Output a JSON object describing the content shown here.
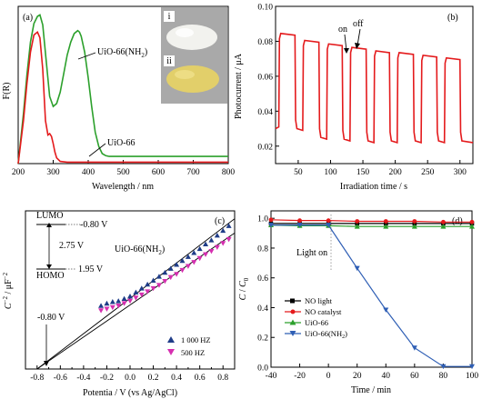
{
  "chart_data": [
    {
      "panel": "(a)",
      "type": "line",
      "xlabel": "Wavelength / nm",
      "ylabel": "F(R)",
      "xlim": [
        200,
        800
      ],
      "xticks": [
        200,
        300,
        400,
        500,
        600,
        700,
        800
      ],
      "ylim": [
        0,
        1.1
      ],
      "series": [
        {
          "name": "UiO-66(NH2)",
          "color": "#2ca02c",
          "x": [
            200,
            215,
            225,
            235,
            245,
            255,
            262,
            270,
            280,
            290,
            300,
            310,
            320,
            330,
            340,
            350,
            360,
            370,
            375,
            380,
            390,
            400,
            410,
            420,
            430,
            440,
            450,
            460,
            480,
            500,
            600,
            700,
            800
          ],
          "y": [
            0.0,
            0.35,
            0.62,
            0.85,
            0.98,
            1.03,
            1.04,
            0.97,
            0.72,
            0.47,
            0.4,
            0.42,
            0.5,
            0.63,
            0.76,
            0.85,
            0.91,
            0.93,
            0.92,
            0.89,
            0.78,
            0.6,
            0.4,
            0.22,
            0.12,
            0.07,
            0.055,
            0.05,
            0.05,
            0.05,
            0.05,
            0.05,
            0.05
          ]
        },
        {
          "name": "UiO-66",
          "color": "#e41a1c",
          "x": [
            200,
            215,
            225,
            235,
            245,
            255,
            262,
            270,
            278,
            285,
            290,
            295,
            300,
            305,
            310,
            320,
            340,
            380,
            400,
            450,
            500,
            600,
            700,
            800
          ],
          "y": [
            0.0,
            0.3,
            0.56,
            0.78,
            0.9,
            0.92,
            0.88,
            0.66,
            0.3,
            0.2,
            0.21,
            0.19,
            0.14,
            0.08,
            0.04,
            0.015,
            0.01,
            0.01,
            0.01,
            0.01,
            0.01,
            0.01,
            0.01,
            0.01
          ]
        }
      ],
      "annotations": [
        "UiO-66(NH2)",
        "UiO-66"
      ],
      "inset_labels": [
        "i",
        "ii"
      ]
    },
    {
      "panel": "(b)",
      "type": "line",
      "xlabel": "Irradiation time / s",
      "ylabel": "Photocurrent / μA",
      "xlim": [
        15,
        320
      ],
      "xticks": [
        50,
        100,
        150,
        200,
        250,
        300
      ],
      "ylim": [
        0.01,
        0.1
      ],
      "yticks": [
        0.02,
        0.04,
        0.06,
        0.08,
        0.1
      ],
      "ytick_labels": [
        "0.02",
        "0.04",
        "0.06",
        "0.08",
        "0.10"
      ],
      "series": [
        {
          "name": "photocurrent",
          "color": "#e41a1c",
          "on_off_cycles": [
            {
              "on": 20,
              "off": 45,
              "on_level": 0.0845,
              "dark_level": 0.029
            },
            {
              "on": 57,
              "off": 82,
              "on_level": 0.0805,
              "dark_level": 0.024
            },
            {
              "on": 94,
              "off": 118,
              "on_level": 0.0785,
              "dark_level": 0.023
            },
            {
              "on": 130,
              "off": 155,
              "on_level": 0.0765,
              "dark_level": 0.022
            },
            {
              "on": 167,
              "off": 191,
              "on_level": 0.0745,
              "dark_level": 0.022
            },
            {
              "on": 203,
              "off": 228,
              "on_level": 0.0735,
              "dark_level": 0.022
            },
            {
              "on": 240,
              "off": 264,
              "on_level": 0.072,
              "dark_level": 0.022
            },
            {
              "on": 276,
              "off": 300,
              "on_level": 0.0705,
              "dark_level": 0.022
            }
          ],
          "start_level": 0.03,
          "end_level": 0.022
        }
      ],
      "annotations": [
        "on",
        "off"
      ]
    },
    {
      "panel": "(c)",
      "type": "scatter",
      "xlabel": "Potentia / V (vs Ag/AgCl)",
      "ylabel": "C⁻² / μF⁻²",
      "xlim": [
        -0.9,
        0.9
      ],
      "xticks": [
        -0.8,
        -0.7,
        -0.6,
        -0.5,
        -0.4,
        -0.3,
        -0.2,
        -0.1,
        0.0,
        0.1,
        0.2,
        0.3,
        0.4,
        0.5,
        0.6,
        0.7,
        0.8
      ],
      "xtick_labels": [
        "-0.8",
        "-0.6",
        "-0.4",
        "-0.2",
        "0.0",
        "0.2",
        "0.4",
        "0.6",
        "0.8"
      ],
      "ylim": [
        0,
        1
      ],
      "series": [
        {
          "name": "1 000 HZ",
          "color": "#1f3c88",
          "marker": "triangle-up",
          "x": [
            -0.25,
            -0.2,
            -0.15,
            -0.1,
            -0.05,
            0.0,
            0.05,
            0.1,
            0.15,
            0.2,
            0.25,
            0.3,
            0.35,
            0.4,
            0.45,
            0.5,
            0.55,
            0.6,
            0.65,
            0.7,
            0.75,
            0.8,
            0.85
          ],
          "y": [
            0.4,
            0.415,
            0.425,
            0.43,
            0.445,
            0.46,
            0.485,
            0.51,
            0.535,
            0.56,
            0.585,
            0.61,
            0.635,
            0.66,
            0.685,
            0.71,
            0.735,
            0.76,
            0.79,
            0.815,
            0.845,
            0.875,
            0.905
          ]
        },
        {
          "name": "500 HZ",
          "color": "#d62fb0",
          "marker": "triangle-down",
          "x": [
            -0.25,
            -0.2,
            -0.15,
            -0.1,
            -0.05,
            0.0,
            0.05,
            0.1,
            0.15,
            0.2,
            0.25,
            0.3,
            0.35,
            0.4,
            0.45,
            0.5,
            0.55,
            0.6,
            0.65,
            0.7,
            0.75,
            0.8,
            0.85
          ],
          "y": [
            0.37,
            0.38,
            0.39,
            0.4,
            0.415,
            0.43,
            0.45,
            0.47,
            0.49,
            0.51,
            0.53,
            0.555,
            0.58,
            0.6,
            0.625,
            0.65,
            0.675,
            0.7,
            0.725,
            0.745,
            0.77,
            0.795,
            0.82
          ]
        }
      ],
      "fit_lines": [
        {
          "x": [
            -0.8,
            0.9
          ],
          "y": [
            0.0,
            0.95
          ]
        },
        {
          "x": [
            -0.8,
            0.9
          ],
          "y": [
            0.0,
            0.86
          ]
        }
      ],
      "annotations": [
        "LUMO",
        "-0.80 V",
        "2.75 V",
        "HOMO",
        "1.95 V",
        "UiO-66(NH2)",
        "-0.80 V"
      ]
    },
    {
      "panel": "(d)",
      "type": "line",
      "xlabel": "Time / min",
      "ylabel": "C / C₀",
      "xlim": [
        -40,
        100
      ],
      "xticks": [
        -40,
        -20,
        0,
        20,
        40,
        60,
        80,
        100
      ],
      "ylim": [
        0,
        1.05
      ],
      "yticks": [
        0.0,
        0.2,
        0.4,
        0.6,
        0.8,
        1.0
      ],
      "ytick_labels": [
        "0.0",
        "0.2",
        "0.4",
        "0.6",
        "0.8",
        "1.0"
      ],
      "series": [
        {
          "name": "NO light",
          "color": "#000000",
          "marker": "square",
          "x": [
            -40,
            -20,
            0,
            20,
            40,
            60,
            80,
            100
          ],
          "y": [
            0.965,
            0.965,
            0.965,
            0.965,
            0.965,
            0.965,
            0.965,
            0.965
          ]
        },
        {
          "name": "NO catalyst",
          "color": "#e41a1c",
          "marker": "circle",
          "x": [
            -40,
            -20,
            0,
            20,
            40,
            60,
            80,
            100
          ],
          "y": [
            0.99,
            0.985,
            0.985,
            0.98,
            0.98,
            0.98,
            0.975,
            0.975
          ]
        },
        {
          "name": "UiO-66",
          "color": "#2ca02c",
          "marker": "triangle-up",
          "x": [
            -40,
            -20,
            0,
            20,
            40,
            60,
            80,
            100
          ],
          "y": [
            0.955,
            0.95,
            0.95,
            0.945,
            0.945,
            0.945,
            0.945,
            0.945
          ]
        },
        {
          "name": "UiO-66(NH2)",
          "color": "#2f5fb5",
          "marker": "triangle-down",
          "x": [
            -40,
            -20,
            0,
            20,
            40,
            60,
            80,
            100
          ],
          "y": [
            0.955,
            0.955,
            0.955,
            0.665,
            0.385,
            0.13,
            0.005,
            0.005
          ]
        }
      ],
      "annotations": [
        "Light on"
      ]
    }
  ],
  "text": {
    "a_panel": "(a)",
    "a_ylabel": "F(R)",
    "a_xlabel": "Wavelength / nm",
    "a_lbl_nh2": "UiO-66(NH",
    "a_lbl_nh2_sub": "2",
    "a_lbl_nh2_end": ")",
    "a_lbl_uio": "UiO-66",
    "a_inset_i": "i",
    "a_inset_ii": "ii",
    "b_panel": "(b)",
    "b_ylabel": "Photocurrent / μA",
    "b_xlabel": "Irradiation time / s",
    "b_on": "on",
    "b_off": "off",
    "c_panel": "(c)",
    "c_ylabel_main": "C",
    "c_ylabel_sup": "−2",
    "c_ylabel_rest": " / μF",
    "c_ylabel_sup2": "−2",
    "c_xlabel": "Potentia / V (vs Ag/AgCl)",
    "c_lumo": "LUMO",
    "c_lumo_v": "-0.80 V",
    "c_gap": "2.75 V",
    "c_homo": "HOMO",
    "c_homo_v": "1.95 V",
    "c_compound": "UiO-66(NH",
    "c_compound_sub": "2",
    "c_compound_end": ")",
    "c_intercept": "-0.80 V",
    "c_leg1": "1 000 HZ",
    "c_leg2": "500 HZ",
    "d_panel": "(d)",
    "d_ylabel_c": "C",
    "d_ylabel_sep": " / ",
    "d_ylabel_c0": "C",
    "d_ylabel_sub": "0",
    "d_xlabel": "Time / min",
    "d_light_on": "Light on",
    "d_leg1": "NO light",
    "d_leg2": "NO catalyst",
    "d_leg3": "UiO-66",
    "d_leg4": "UiO-66(NH",
    "d_leg4_sub": "2",
    "d_leg4_end": ")"
  }
}
